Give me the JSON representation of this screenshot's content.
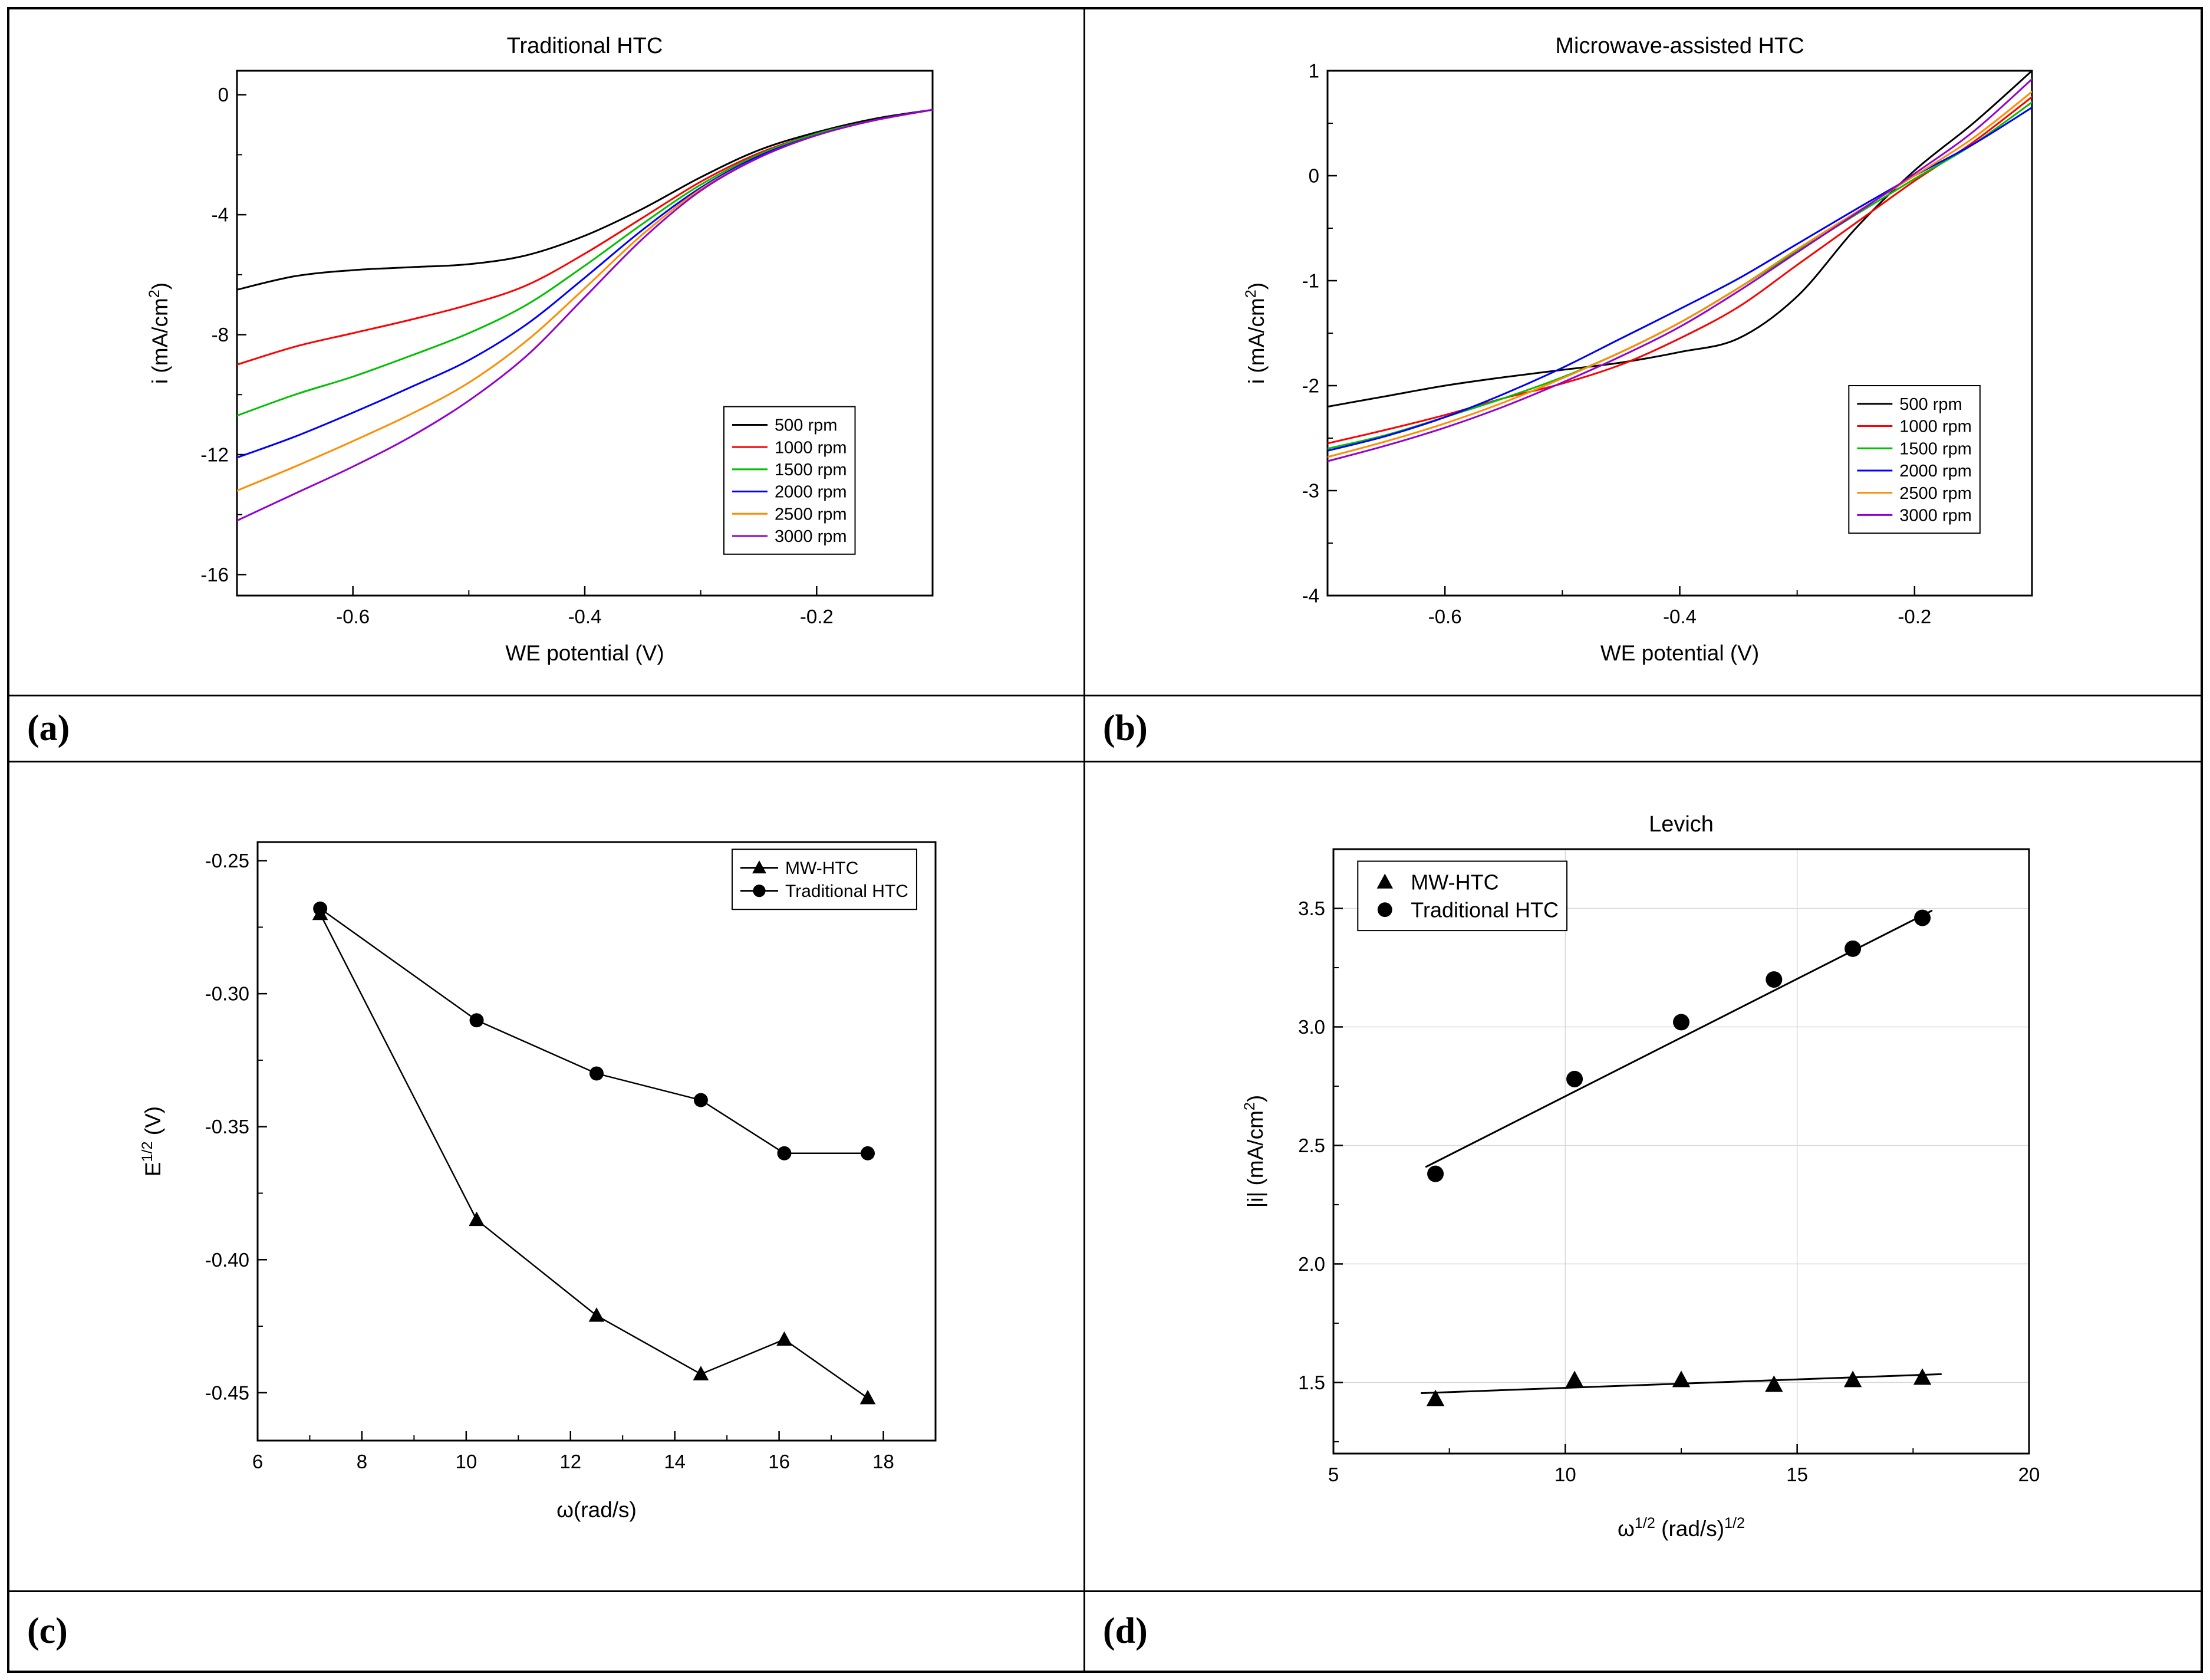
{
  "figure": {
    "labels": {
      "a": "(a)",
      "b": "(b)",
      "c": "(c)",
      "d": "(d)"
    }
  },
  "chart_data": [
    {
      "id": "a",
      "type": "line",
      "title": "Traditional HTC",
      "xlabel": "WE potential (V)",
      "ylabel": "i (mA/cm^{2})",
      "xlim": [
        -0.7,
        -0.1
      ],
      "ylim": [
        -16.7,
        0.8
      ],
      "xticks": [
        -0.6,
        -0.4,
        -0.2
      ],
      "yticks": [
        -16,
        -12,
        -8,
        -4,
        0
      ],
      "x_decimals": 1,
      "y_decimals": 0,
      "grid": false,
      "legend_position": "middle-right",
      "series": [
        {
          "name": "500 rpm",
          "color": "#000000",
          "smooth": true,
          "points": [
            [
              -0.7,
              -6.5
            ],
            [
              -0.65,
              -6.05
            ],
            [
              -0.6,
              -5.85
            ],
            [
              -0.55,
              -5.75
            ],
            [
              -0.5,
              -5.65
            ],
            [
              -0.45,
              -5.35
            ],
            [
              -0.4,
              -4.7
            ],
            [
              -0.35,
              -3.8
            ],
            [
              -0.3,
              -2.75
            ],
            [
              -0.25,
              -1.85
            ],
            [
              -0.2,
              -1.25
            ],
            [
              -0.15,
              -0.8
            ],
            [
              -0.1,
              -0.5
            ]
          ]
        },
        {
          "name": "1000 rpm",
          "color": "#ff0000",
          "smooth": true,
          "points": [
            [
              -0.7,
              -9.0
            ],
            [
              -0.65,
              -8.4
            ],
            [
              -0.6,
              -7.95
            ],
            [
              -0.55,
              -7.5
            ],
            [
              -0.5,
              -7.0
            ],
            [
              -0.45,
              -6.35
            ],
            [
              -0.4,
              -5.3
            ],
            [
              -0.35,
              -4.1
            ],
            [
              -0.3,
              -2.9
            ],
            [
              -0.25,
              -1.95
            ],
            [
              -0.2,
              -1.3
            ],
            [
              -0.15,
              -0.85
            ],
            [
              -0.1,
              -0.5
            ]
          ]
        },
        {
          "name": "1500 rpm",
          "color": "#00c000",
          "smooth": true,
          "points": [
            [
              -0.7,
              -10.7
            ],
            [
              -0.65,
              -10.0
            ],
            [
              -0.6,
              -9.4
            ],
            [
              -0.55,
              -8.7
            ],
            [
              -0.5,
              -7.95
            ],
            [
              -0.45,
              -7.0
            ],
            [
              -0.4,
              -5.7
            ],
            [
              -0.35,
              -4.3
            ],
            [
              -0.3,
              -3.0
            ],
            [
              -0.25,
              -2.0
            ],
            [
              -0.2,
              -1.3
            ],
            [
              -0.15,
              -0.85
            ],
            [
              -0.1,
              -0.5
            ]
          ]
        },
        {
          "name": "2000 rpm",
          "color": "#0000ff",
          "smooth": true,
          "points": [
            [
              -0.7,
              -12.1
            ],
            [
              -0.65,
              -11.4
            ],
            [
              -0.6,
              -10.6
            ],
            [
              -0.55,
              -9.75
            ],
            [
              -0.5,
              -8.85
            ],
            [
              -0.45,
              -7.65
            ],
            [
              -0.4,
              -6.1
            ],
            [
              -0.35,
              -4.5
            ],
            [
              -0.3,
              -3.1
            ],
            [
              -0.25,
              -2.05
            ],
            [
              -0.2,
              -1.35
            ],
            [
              -0.15,
              -0.85
            ],
            [
              -0.1,
              -0.5
            ]
          ]
        },
        {
          "name": "2500 rpm",
          "color": "#ff8c00",
          "smooth": true,
          "points": [
            [
              -0.7,
              -13.2
            ],
            [
              -0.65,
              -12.4
            ],
            [
              -0.6,
              -11.55
            ],
            [
              -0.55,
              -10.65
            ],
            [
              -0.5,
              -9.6
            ],
            [
              -0.45,
              -8.2
            ],
            [
              -0.4,
              -6.45
            ],
            [
              -0.35,
              -4.65
            ],
            [
              -0.3,
              -3.15
            ],
            [
              -0.25,
              -2.1
            ],
            [
              -0.2,
              -1.35
            ],
            [
              -0.15,
              -0.85
            ],
            [
              -0.1,
              -0.5
            ]
          ]
        },
        {
          "name": "3000 rpm",
          "color": "#9400d3",
          "smooth": true,
          "points": [
            [
              -0.7,
              -14.2
            ],
            [
              -0.65,
              -13.3
            ],
            [
              -0.6,
              -12.4
            ],
            [
              -0.55,
              -11.4
            ],
            [
              -0.5,
              -10.2
            ],
            [
              -0.45,
              -8.7
            ],
            [
              -0.4,
              -6.75
            ],
            [
              -0.35,
              -4.8
            ],
            [
              -0.3,
              -3.2
            ],
            [
              -0.25,
              -2.1
            ],
            [
              -0.2,
              -1.35
            ],
            [
              -0.15,
              -0.85
            ],
            [
              -0.1,
              -0.5
            ]
          ]
        }
      ]
    },
    {
      "id": "b",
      "type": "line",
      "title": "Microwave-assisted HTC",
      "xlabel": "WE potential (V)",
      "ylabel": "i (mA/cm^{2})",
      "xlim": [
        -0.7,
        -0.1
      ],
      "ylim": [
        -4,
        1
      ],
      "xticks": [
        -0.6,
        -0.4,
        -0.2
      ],
      "yticks": [
        -4,
        -3,
        -2,
        -1,
        0,
        1
      ],
      "x_decimals": 1,
      "y_decimals": 0,
      "grid": false,
      "legend_position": "bottom-right",
      "series": [
        {
          "name": "500 rpm",
          "color": "#000000",
          "smooth": true,
          "points": [
            [
              -0.7,
              -2.2
            ],
            [
              -0.65,
              -2.1
            ],
            [
              -0.6,
              -2.0
            ],
            [
              -0.55,
              -1.92
            ],
            [
              -0.5,
              -1.85
            ],
            [
              -0.45,
              -1.78
            ],
            [
              -0.4,
              -1.68
            ],
            [
              -0.35,
              -1.55
            ],
            [
              -0.3,
              -1.15
            ],
            [
              -0.25,
              -0.5
            ],
            [
              -0.2,
              0.05
            ],
            [
              -0.15,
              0.5
            ],
            [
              -0.1,
              1.0
            ]
          ]
        },
        {
          "name": "1000 rpm",
          "color": "#ff0000",
          "smooth": true,
          "points": [
            [
              -0.7,
              -2.55
            ],
            [
              -0.65,
              -2.42
            ],
            [
              -0.6,
              -2.28
            ],
            [
              -0.55,
              -2.12
            ],
            [
              -0.5,
              -1.98
            ],
            [
              -0.45,
              -1.8
            ],
            [
              -0.4,
              -1.55
            ],
            [
              -0.35,
              -1.25
            ],
            [
              -0.3,
              -0.85
            ],
            [
              -0.25,
              -0.45
            ],
            [
              -0.2,
              -0.05
            ],
            [
              -0.15,
              0.32
            ],
            [
              -0.1,
              0.75
            ]
          ]
        },
        {
          "name": "1500 rpm",
          "color": "#00c000",
          "smooth": true,
          "points": [
            [
              -0.7,
              -2.6
            ],
            [
              -0.65,
              -2.47
            ],
            [
              -0.6,
              -2.3
            ],
            [
              -0.55,
              -2.12
            ],
            [
              -0.5,
              -1.92
            ],
            [
              -0.45,
              -1.68
            ],
            [
              -0.4,
              -1.4
            ],
            [
              -0.35,
              -1.07
            ],
            [
              -0.3,
              -0.72
            ],
            [
              -0.25,
              -0.37
            ],
            [
              -0.2,
              -0.03
            ],
            [
              -0.15,
              0.3
            ],
            [
              -0.1,
              0.7
            ]
          ]
        },
        {
          "name": "2000 rpm",
          "color": "#0000ff",
          "smooth": true,
          "points": [
            [
              -0.7,
              -2.62
            ],
            [
              -0.65,
              -2.48
            ],
            [
              -0.6,
              -2.3
            ],
            [
              -0.55,
              -2.08
            ],
            [
              -0.5,
              -1.83
            ],
            [
              -0.45,
              -1.55
            ],
            [
              -0.4,
              -1.27
            ],
            [
              -0.35,
              -0.98
            ],
            [
              -0.3,
              -0.65
            ],
            [
              -0.25,
              -0.32
            ],
            [
              -0.2,
              0.0
            ],
            [
              -0.15,
              0.3
            ],
            [
              -0.1,
              0.65
            ]
          ]
        },
        {
          "name": "2500 rpm",
          "color": "#ff8c00",
          "smooth": true,
          "points": [
            [
              -0.7,
              -2.68
            ],
            [
              -0.65,
              -2.53
            ],
            [
              -0.6,
              -2.36
            ],
            [
              -0.55,
              -2.16
            ],
            [
              -0.5,
              -1.93
            ],
            [
              -0.45,
              -1.68
            ],
            [
              -0.4,
              -1.4
            ],
            [
              -0.35,
              -1.07
            ],
            [
              -0.3,
              -0.7
            ],
            [
              -0.25,
              -0.35
            ],
            [
              -0.2,
              0.0
            ],
            [
              -0.15,
              0.36
            ],
            [
              -0.1,
              0.8
            ]
          ]
        },
        {
          "name": "3000 rpm",
          "color": "#9400d3",
          "smooth": true,
          "points": [
            [
              -0.7,
              -2.72
            ],
            [
              -0.65,
              -2.57
            ],
            [
              -0.6,
              -2.4
            ],
            [
              -0.55,
              -2.2
            ],
            [
              -0.5,
              -1.97
            ],
            [
              -0.45,
              -1.72
            ],
            [
              -0.4,
              -1.44
            ],
            [
              -0.35,
              -1.1
            ],
            [
              -0.3,
              -0.73
            ],
            [
              -0.25,
              -0.36
            ],
            [
              -0.2,
              0.02
            ],
            [
              -0.15,
              0.42
            ],
            [
              -0.1,
              0.92
            ]
          ]
        }
      ]
    },
    {
      "id": "c",
      "type": "line",
      "title": "",
      "xlabel": "ω(rad/s)",
      "ylabel": "E^{1/2} (V)",
      "xlim": [
        6,
        19
      ],
      "ylim": [
        -0.468,
        -0.243
      ],
      "xticks": [
        6,
        8,
        10,
        12,
        14,
        16,
        18
      ],
      "yticks": [
        -0.45,
        -0.4,
        -0.35,
        -0.3,
        -0.25
      ],
      "x_decimals": 0,
      "y_decimals": 2,
      "grid": false,
      "legend_position": "top-right",
      "series": [
        {
          "name": "MW-HTC",
          "color": "#000000",
          "marker": "triangle",
          "points": [
            [
              7.2,
              -0.27
            ],
            [
              10.2,
              -0.385
            ],
            [
              12.5,
              -0.421
            ],
            [
              14.5,
              -0.443
            ],
            [
              16.1,
              -0.43
            ],
            [
              17.7,
              -0.452
            ]
          ]
        },
        {
          "name": "Traditional HTC",
          "color": "#000000",
          "marker": "circle",
          "points": [
            [
              7.2,
              -0.268
            ],
            [
              10.2,
              -0.31
            ],
            [
              12.5,
              -0.33
            ],
            [
              14.5,
              -0.34
            ],
            [
              16.1,
              -0.36
            ],
            [
              17.7,
              -0.36
            ]
          ]
        }
      ]
    },
    {
      "id": "d",
      "type": "scatter",
      "title": "Levich",
      "xlabel": "ω^{1/2} (rad/s)^{1/2}",
      "ylabel": "|i| (mA/cm^{2})",
      "xlim": [
        5,
        20
      ],
      "ylim": [
        1.2,
        3.75
      ],
      "xticks": [
        5,
        10,
        15,
        20
      ],
      "yticks": [
        1.5,
        2.0,
        2.5,
        3.0,
        3.5
      ],
      "x_decimals": 0,
      "y_decimals": 1,
      "grid": true,
      "legend_position": "top-left",
      "series": [
        {
          "name": null,
          "role": "fit",
          "color": "#000000",
          "line": true,
          "marker": null,
          "points": [
            [
              6.9,
              1.455
            ],
            [
              18.1,
              1.535
            ]
          ]
        },
        {
          "name": null,
          "role": "fit",
          "color": "#000000",
          "line": true,
          "marker": null,
          "points": [
            [
              7.0,
              2.41
            ],
            [
              17.9,
              3.49
            ]
          ]
        },
        {
          "name": "MW-HTC",
          "color": "#000000",
          "marker": "triangle",
          "line": false,
          "points": [
            [
              7.2,
              1.43
            ],
            [
              10.2,
              1.51
            ],
            [
              12.5,
              1.51
            ],
            [
              14.5,
              1.49
            ],
            [
              16.2,
              1.51
            ],
            [
              17.7,
              1.52
            ]
          ]
        },
        {
          "name": "Traditional HTC",
          "color": "#000000",
          "marker": "circle",
          "line": false,
          "points": [
            [
              7.2,
              2.38
            ],
            [
              10.2,
              2.78
            ],
            [
              12.5,
              3.02
            ],
            [
              14.5,
              3.2
            ],
            [
              16.2,
              3.33
            ],
            [
              17.7,
              3.46
            ]
          ]
        }
      ]
    }
  ]
}
